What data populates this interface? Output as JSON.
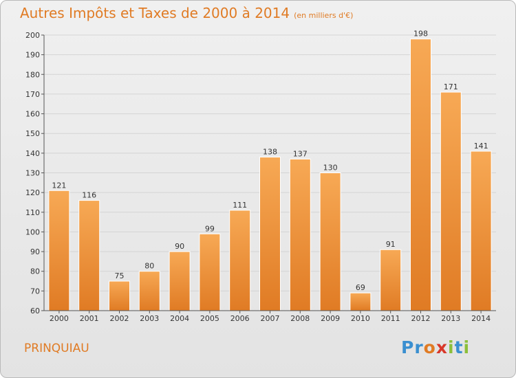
{
  "title": "Autres Impôts et Taxes de 2000 à 2014",
  "subtitle": "(en milliers d'€)",
  "town": "PRINQUIAU",
  "logo": {
    "text": "Proxiti",
    "letters": [
      "P",
      "r",
      "o",
      "x",
      "i",
      "t",
      "i"
    ],
    "colors": [
      "#3a8fd0",
      "#3a8fd0",
      "#e07b24",
      "#d8382a",
      "#8cbf3a",
      "#3a8fd0",
      "#8cbf3a"
    ]
  },
  "colors": {
    "bar_light": "#f7a955",
    "bar_dark": "#e07b24",
    "accent": "#e07b24"
  },
  "chart_data": {
    "type": "bar",
    "title": "Autres Impôts et Taxes de 2000 à 2014",
    "subtitle": "(en milliers d'€)",
    "categories": [
      "2000",
      "2001",
      "2002",
      "2003",
      "2004",
      "2005",
      "2006",
      "2007",
      "2008",
      "2009",
      "2010",
      "2011",
      "2012",
      "2013",
      "2014"
    ],
    "values": [
      121,
      116,
      75,
      80,
      90,
      99,
      111,
      138,
      137,
      130,
      69,
      91,
      198,
      171,
      141
    ],
    "ylim": [
      60,
      200
    ],
    "yticks": [
      60,
      70,
      80,
      90,
      100,
      110,
      120,
      130,
      140,
      150,
      160,
      170,
      180,
      190,
      200
    ],
    "grid": true,
    "xlabel": "",
    "ylabel": ""
  }
}
